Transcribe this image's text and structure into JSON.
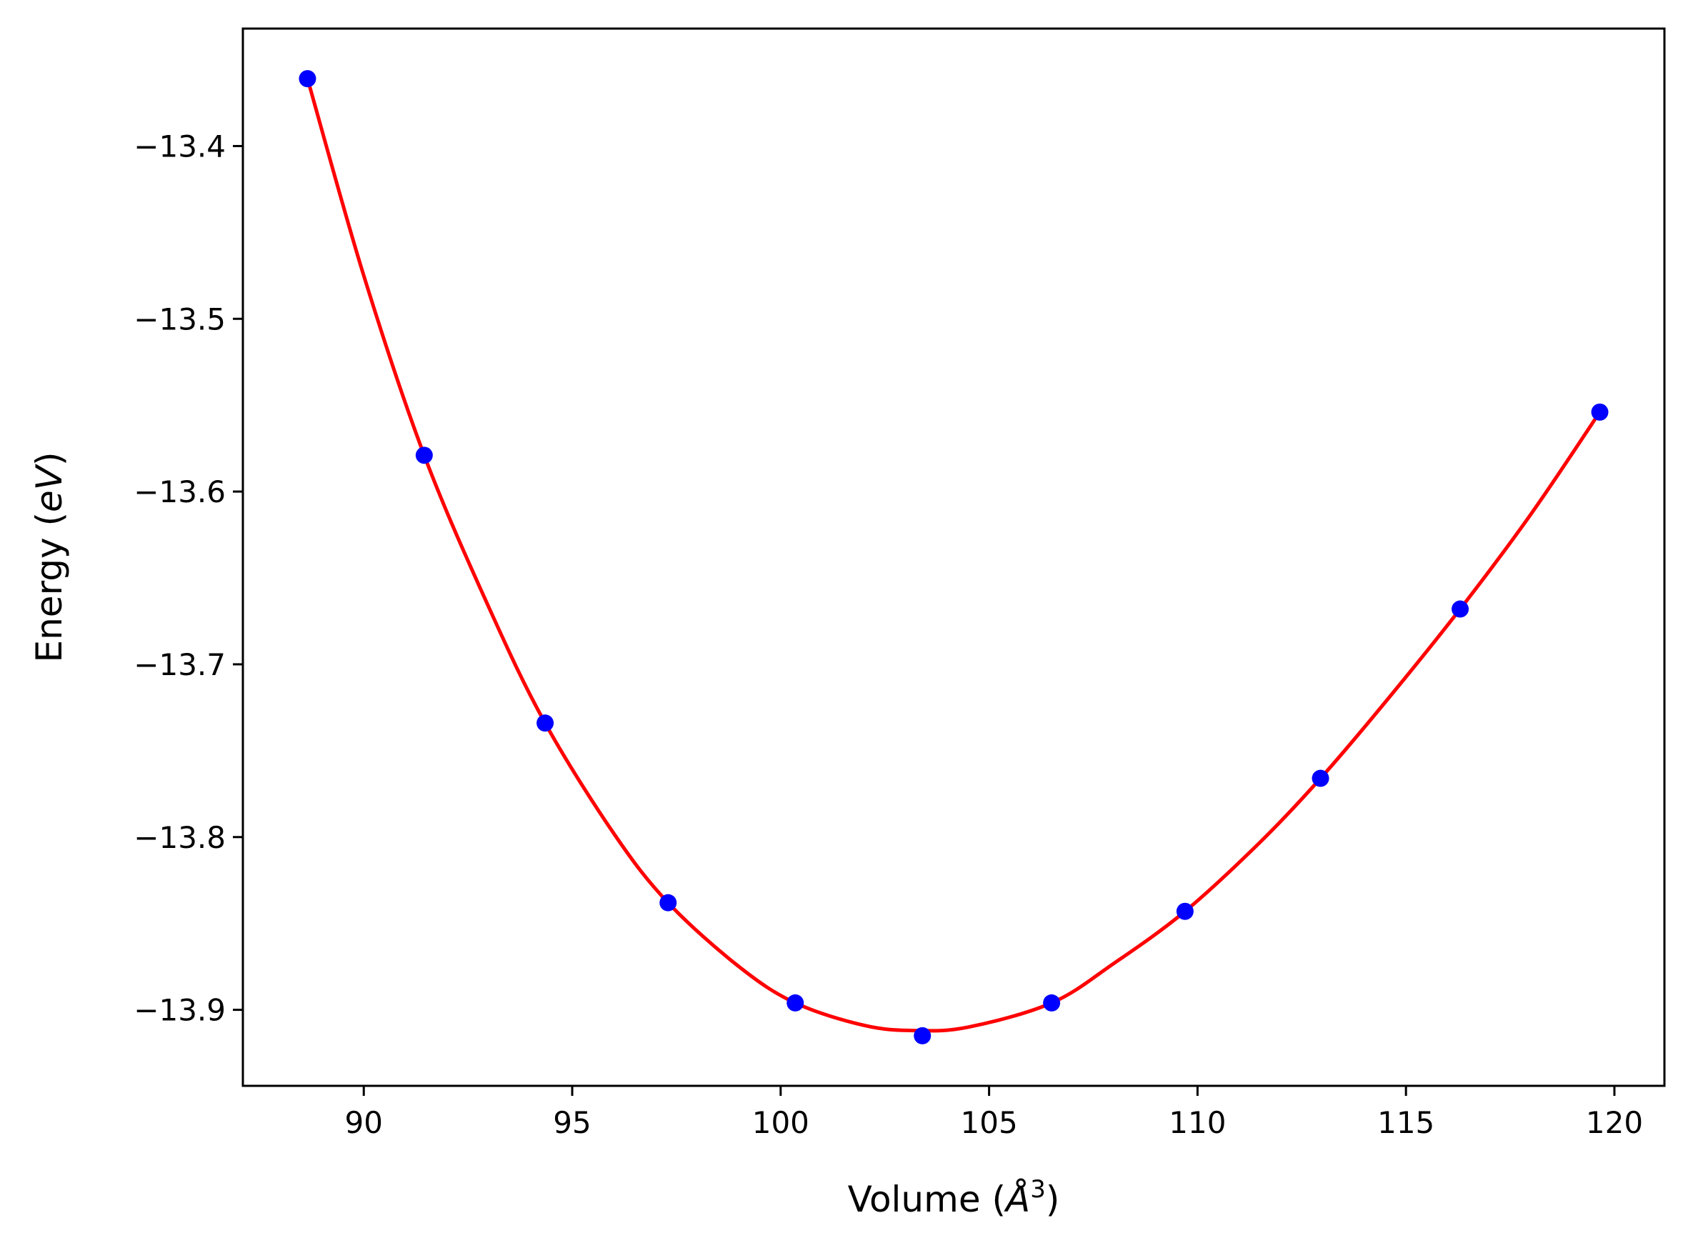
{
  "chart_data": {
    "type": "scatter",
    "title": "",
    "xlabel": "Volume (",
    "xlabel_symbol": "Å",
    "xlabel_exponent": "3",
    "xlabel_close": ")",
    "ylabel": "Energy (",
    "ylabel_italic": "eV",
    "ylabel_close": ")",
    "xlim": [
      87.1,
      121.2
    ],
    "ylim": [
      -13.944,
      -13.332
    ],
    "x_ticks": [
      90,
      95,
      100,
      105,
      110,
      115,
      120
    ],
    "x_tick_labels": [
      "90",
      "95",
      "100",
      "105",
      "110",
      "115",
      "120"
    ],
    "y_ticks": [
      -13.9,
      -13.8,
      -13.7,
      -13.6,
      -13.5,
      -13.4
    ],
    "y_tick_labels": [
      "−13.9",
      "−13.8",
      "−13.7",
      "−13.6",
      "−13.5",
      "−13.4"
    ],
    "grid": false,
    "legend": "none",
    "series": [
      {
        "kind": "points",
        "color": "#0000ff",
        "x": [
          88.65,
          91.45,
          94.35,
          97.3,
          100.35,
          103.4,
          106.5,
          109.7,
          112.95,
          116.3,
          119.65
        ],
        "y": [
          -13.361,
          -13.579,
          -13.734,
          -13.838,
          -13.896,
          -13.915,
          -13.896,
          -13.843,
          -13.766,
          -13.668,
          -13.554
        ]
      },
      {
        "kind": "fit-curve",
        "color": "#ff0000",
        "x": [
          88.65,
          90.0,
          91.45,
          93.0,
          94.35,
          96.0,
          97.3,
          99.0,
          100.35,
          102.0,
          103.2,
          104.5,
          106.5,
          108.0,
          109.7,
          111.5,
          112.95,
          114.5,
          116.3,
          118.0,
          119.65
        ],
        "y": [
          -13.361,
          -13.475,
          -13.579,
          -13.667,
          -13.734,
          -13.798,
          -13.838,
          -13.875,
          -13.896,
          -13.909,
          -13.912,
          -13.91,
          -13.896,
          -13.873,
          -13.843,
          -13.803,
          -13.766,
          -13.722,
          -13.668,
          -13.613,
          -13.554
        ]
      }
    ]
  }
}
